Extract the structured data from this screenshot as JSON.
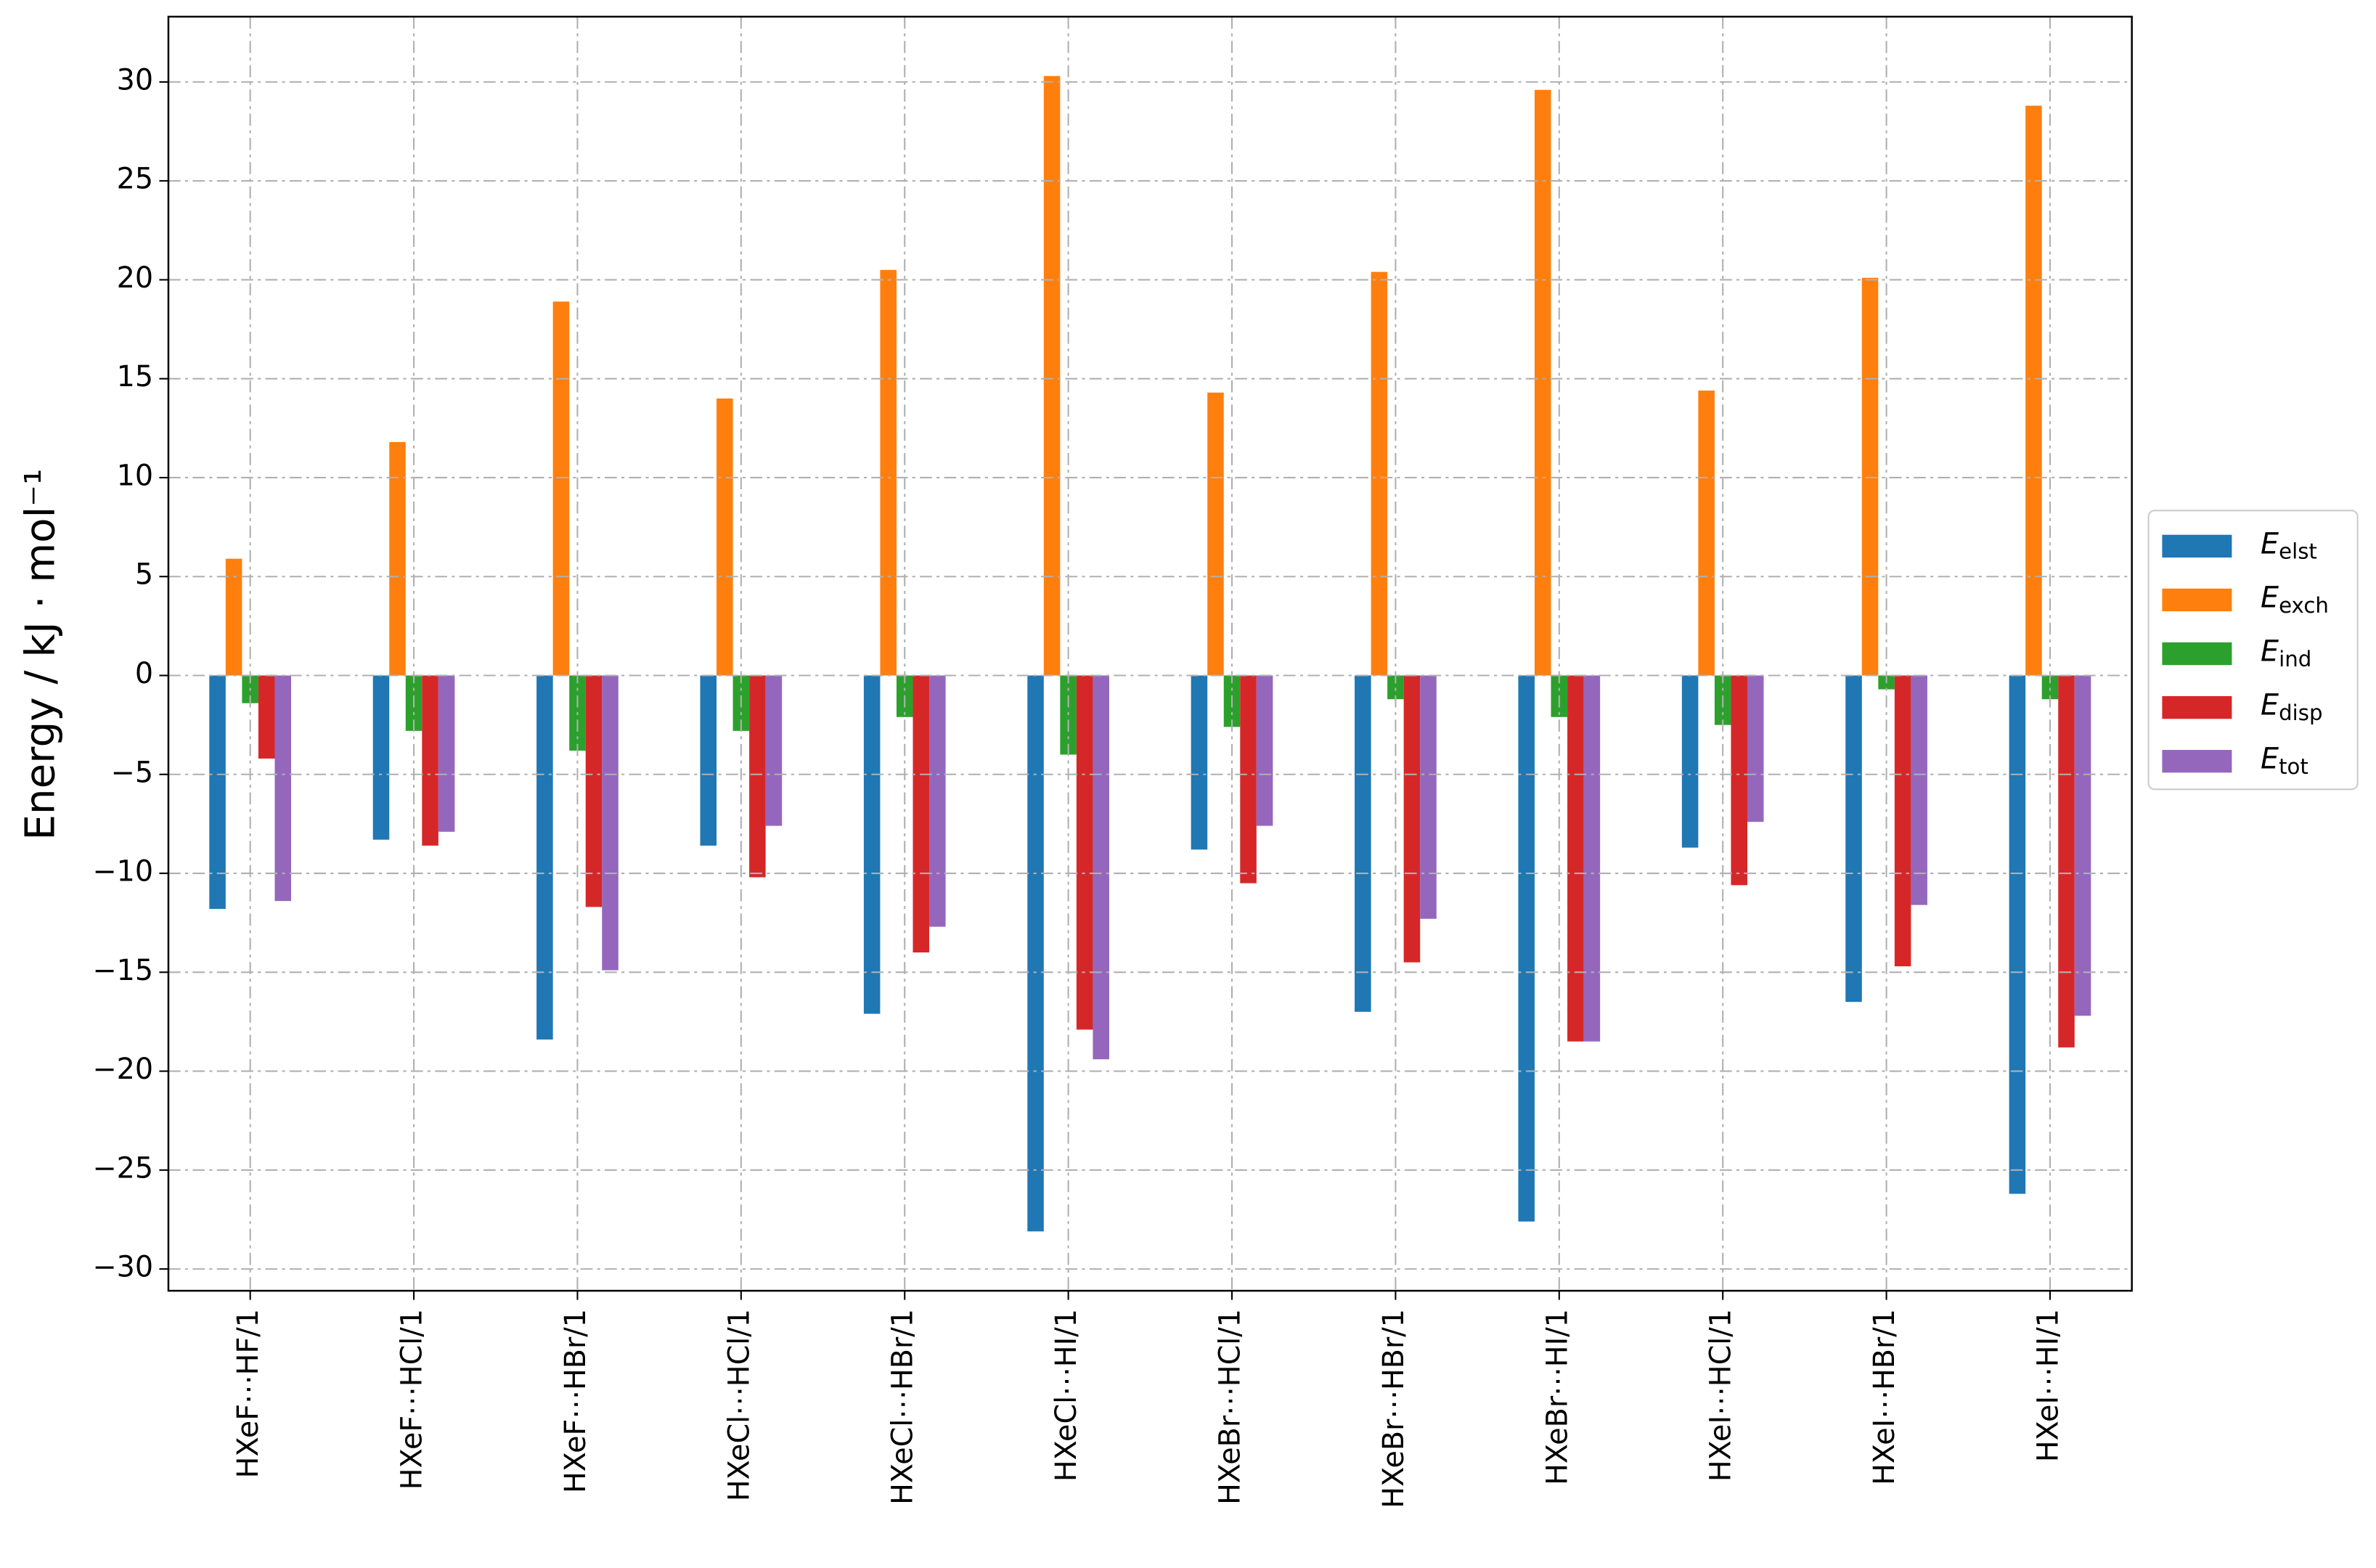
{
  "chart_data": {
    "type": "bar",
    "ylabel": "Energy / kJ · mol⁻¹",
    "categories": [
      "HXeF⋯HF/1",
      "HXeF⋯HCl/1",
      "HXeF⋯HBr/1",
      "HXeCl⋯HCl/1",
      "HXeCl⋯HBr/1",
      "HXeCl⋯HI/1",
      "HXeBr⋯HCl/1",
      "HXeBr⋯HBr/1",
      "HXeBr⋯HI/1",
      "HXeI⋯HCl/1",
      "HXeI⋯HBr/1",
      "HXeI⋯HI/1"
    ],
    "series": [
      {
        "name": "Eelst",
        "color": "#1f77b4",
        "values": [
          -11.8,
          -8.3,
          -18.4,
          -8.6,
          -17.1,
          -28.1,
          -8.8,
          -17.0,
          -27.6,
          -8.7,
          -16.5,
          -26.2
        ]
      },
      {
        "name": "Eexch",
        "color": "#ff7f0e",
        "values": [
          5.9,
          11.8,
          18.9,
          14.0,
          20.5,
          30.3,
          14.3,
          20.4,
          29.6,
          14.4,
          20.1,
          28.8
        ]
      },
      {
        "name": "Eind",
        "color": "#2ca02c",
        "values": [
          -1.4,
          -2.8,
          -3.8,
          -2.8,
          -2.1,
          -4.0,
          -2.6,
          -1.2,
          -2.1,
          -2.5,
          -0.7,
          -1.2
        ]
      },
      {
        "name": "Edisp",
        "color": "#d62728",
        "values": [
          -4.2,
          -8.6,
          -11.7,
          -10.2,
          -14.0,
          -17.9,
          -10.5,
          -14.5,
          -18.5,
          -10.6,
          -14.7,
          -18.8
        ]
      },
      {
        "name": "Etot",
        "color": "#9467bd",
        "values": [
          -11.4,
          -7.9,
          -14.9,
          -7.6,
          -12.7,
          -19.4,
          -7.6,
          -12.3,
          -18.5,
          -7.4,
          -11.6,
          -17.2
        ]
      }
    ],
    "ylim": [
      -31.1,
      33.3
    ],
    "yticks": [
      {
        "value": -30,
        "label": "−30"
      },
      {
        "value": -25,
        "label": "−25"
      },
      {
        "value": -20,
        "label": "−20"
      },
      {
        "value": -15,
        "label": "−15"
      },
      {
        "value": -10,
        "label": "−10"
      },
      {
        "value": -5,
        "label": "−5"
      },
      0,
      5,
      10,
      15,
      20,
      25,
      30
    ],
    "grid": true,
    "legend": "right"
  }
}
